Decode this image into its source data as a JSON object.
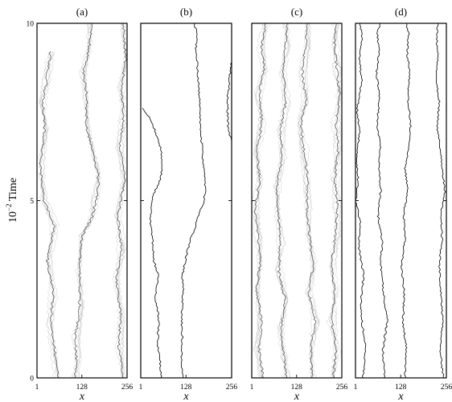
{
  "chart_data": {
    "type": "line",
    "ylabel_base": "10",
    "ylabel_exp": "−2",
    "ylabel_text": " Time",
    "xlabel": "x",
    "xlim": [
      1,
      256
    ],
    "ylim": [
      0,
      10
    ],
    "x_ticks": [
      "1",
      "128",
      "256"
    ],
    "y_ticks": [
      "0",
      "5",
      "10"
    ],
    "colors": {
      "sharp": "#000000",
      "faint": "#7a7a7a"
    },
    "panels": [
      {
        "title": "(a)",
        "style": "diffuse",
        "walls": [
          {
            "x": [
              62,
              52,
              40,
              47,
              30,
              50,
              20,
              10,
              22,
              18,
              28,
              40
            ],
            "t": [
              0,
              0.7,
              1.5,
              2.4,
              3.3,
              4.3,
              5.0,
              6.0,
              7.0,
              7.8,
              8.4,
              9.2
            ]
          },
          {
            "x": [
              108,
              113,
              110,
              122,
              120,
              128,
              156,
              168,
              175,
              172,
              160,
              140,
              141,
              132,
              150,
              155
            ],
            "t": [
              0,
              0.5,
              1.2,
              2.0,
              3.0,
              4.0,
              4.5,
              5.0,
              5.4,
              5.8,
              6.3,
              7.1,
              8.0,
              8.6,
              9.4,
              10
            ]
          },
          {
            "x": [
              245,
              232,
              238,
              225,
              240,
              230,
              250,
              236,
              245,
              240,
              252,
              246
            ],
            "t": [
              0,
              0.9,
              1.8,
              2.8,
              3.6,
              4.6,
              5.6,
              6.5,
              7.3,
              8.2,
              9.0,
              10
            ]
          }
        ]
      },
      {
        "title": "(b)",
        "style": "sharp",
        "walls": [
          {
            "x": [
              58,
              55,
              48,
              52,
              42,
              50,
              38,
              34,
              28,
              30,
              38,
              56,
              62,
              60,
              54,
              40,
              22,
              6
            ],
            "t": [
              0,
              0.5,
              1.0,
              1.6,
              2.3,
              2.9,
              3.3,
              3.9,
              4.4,
              4.8,
              5.2,
              5.6,
              6.0,
              6.3,
              6.6,
              7.0,
              7.4,
              7.6
            ]
          },
          {
            "x": [
              118,
              116,
              118,
              115,
              120,
              118,
              128,
              140,
              155,
              168,
              178,
              183,
              180,
              175,
              172,
              166,
              168,
              163,
              160,
              156,
              158,
              152
            ],
            "t": [
              0,
              0.6,
              1.2,
              1.8,
              2.4,
              2.9,
              3.4,
              3.9,
              4.3,
              4.7,
              5.0,
              5.3,
              5.7,
              6.2,
              6.7,
              7.2,
              7.7,
              8.3,
              8.8,
              9.3,
              9.7,
              10
            ]
          },
          {
            "x": [
              256,
              246,
              244,
              252,
              256
            ],
            "t": [
              6.7,
              7.0,
              7.8,
              8.6,
              8.9
            ]
          }
        ]
      },
      {
        "title": "(c)",
        "style": "diffuse",
        "walls": [
          {
            "x": [
              34,
              22,
              30,
              14,
              26,
              18,
              10,
              24,
              16,
              30,
              22,
              36,
              28,
              40
            ],
            "t": [
              0,
              0.8,
              1.6,
              2.5,
              3.3,
              4.0,
              4.8,
              5.6,
              6.4,
              7.2,
              8.0,
              8.7,
              9.3,
              10
            ]
          },
          {
            "x": [
              100,
              92,
              84,
              95,
              78,
              82,
              76,
              72,
              88,
              82,
              98,
              90,
              96,
              102
            ],
            "t": [
              0,
              0.6,
              1.4,
              2.2,
              3.0,
              3.8,
              4.6,
              5.4,
              6.2,
              7.0,
              7.8,
              8.6,
              9.3,
              10
            ]
          },
          {
            "x": [
              172,
              168,
              180,
              162,
              176,
              164,
              158,
              160,
              150,
              140,
              156,
              144,
              152,
              160
            ],
            "t": [
              0,
              0.8,
              1.6,
              2.4,
              3.2,
              4.0,
              4.8,
              5.6,
              6.4,
              7.2,
              7.8,
              8.6,
              9.3,
              10
            ]
          },
          {
            "x": [
              232,
              240,
              228,
              236,
              226,
              238,
              244,
              236,
              246,
              240,
              250,
              242,
              236,
              240
            ],
            "t": [
              0,
              0.8,
              1.6,
              2.4,
              3.2,
              4.0,
              4.8,
              5.6,
              6.4,
              7.2,
              8.0,
              8.7,
              9.4,
              10
            ]
          }
        ]
      },
      {
        "title": "(d)",
        "style": "sharp",
        "walls": [
          {
            "x": [
              22,
              30,
              20,
              16,
              24,
              10,
              14,
              2,
              8,
              4,
              12,
              6,
              18,
              12,
              20,
              14
            ],
            "t": [
              0,
              0.8,
              1.5,
              2.2,
              2.9,
              3.7,
              4.4,
              5.0,
              5.6,
              6.2,
              6.9,
              7.6,
              8.4,
              9.0,
              9.6,
              10
            ]
          },
          {
            "x": [
              82,
              78,
              90,
              80,
              72,
              76,
              64,
              72,
              66,
              70,
              62,
              68,
              60,
              68,
              62,
              70
            ],
            "t": [
              0,
              0.8,
              1.6,
              2.4,
              3.2,
              3.9,
              4.6,
              5.3,
              5.9,
              6.5,
              7.2,
              7.9,
              8.6,
              9.2,
              9.7,
              10
            ]
          },
          {
            "x": [
              140,
              144,
              134,
              138,
              130,
              140,
              136,
              148,
              140,
              150,
              156,
              148,
              152,
              146,
              150,
              144
            ],
            "t": [
              0,
              0.8,
              1.6,
              2.4,
              3.2,
              3.9,
              4.6,
              5.3,
              5.9,
              6.5,
              7.2,
              7.9,
              8.6,
              9.2,
              9.7,
              10
            ]
          },
          {
            "x": [
              248,
              238,
              246,
              240,
              236,
              244,
              240,
              252,
              246,
              240,
              230,
              236,
              226,
              234,
              228,
              232
            ],
            "t": [
              0,
              0.8,
              1.6,
              2.4,
              3.2,
              3.9,
              4.6,
              5.2,
              5.8,
              6.4,
              7.1,
              7.8,
              8.5,
              9.1,
              9.6,
              10
            ]
          }
        ]
      }
    ]
  }
}
